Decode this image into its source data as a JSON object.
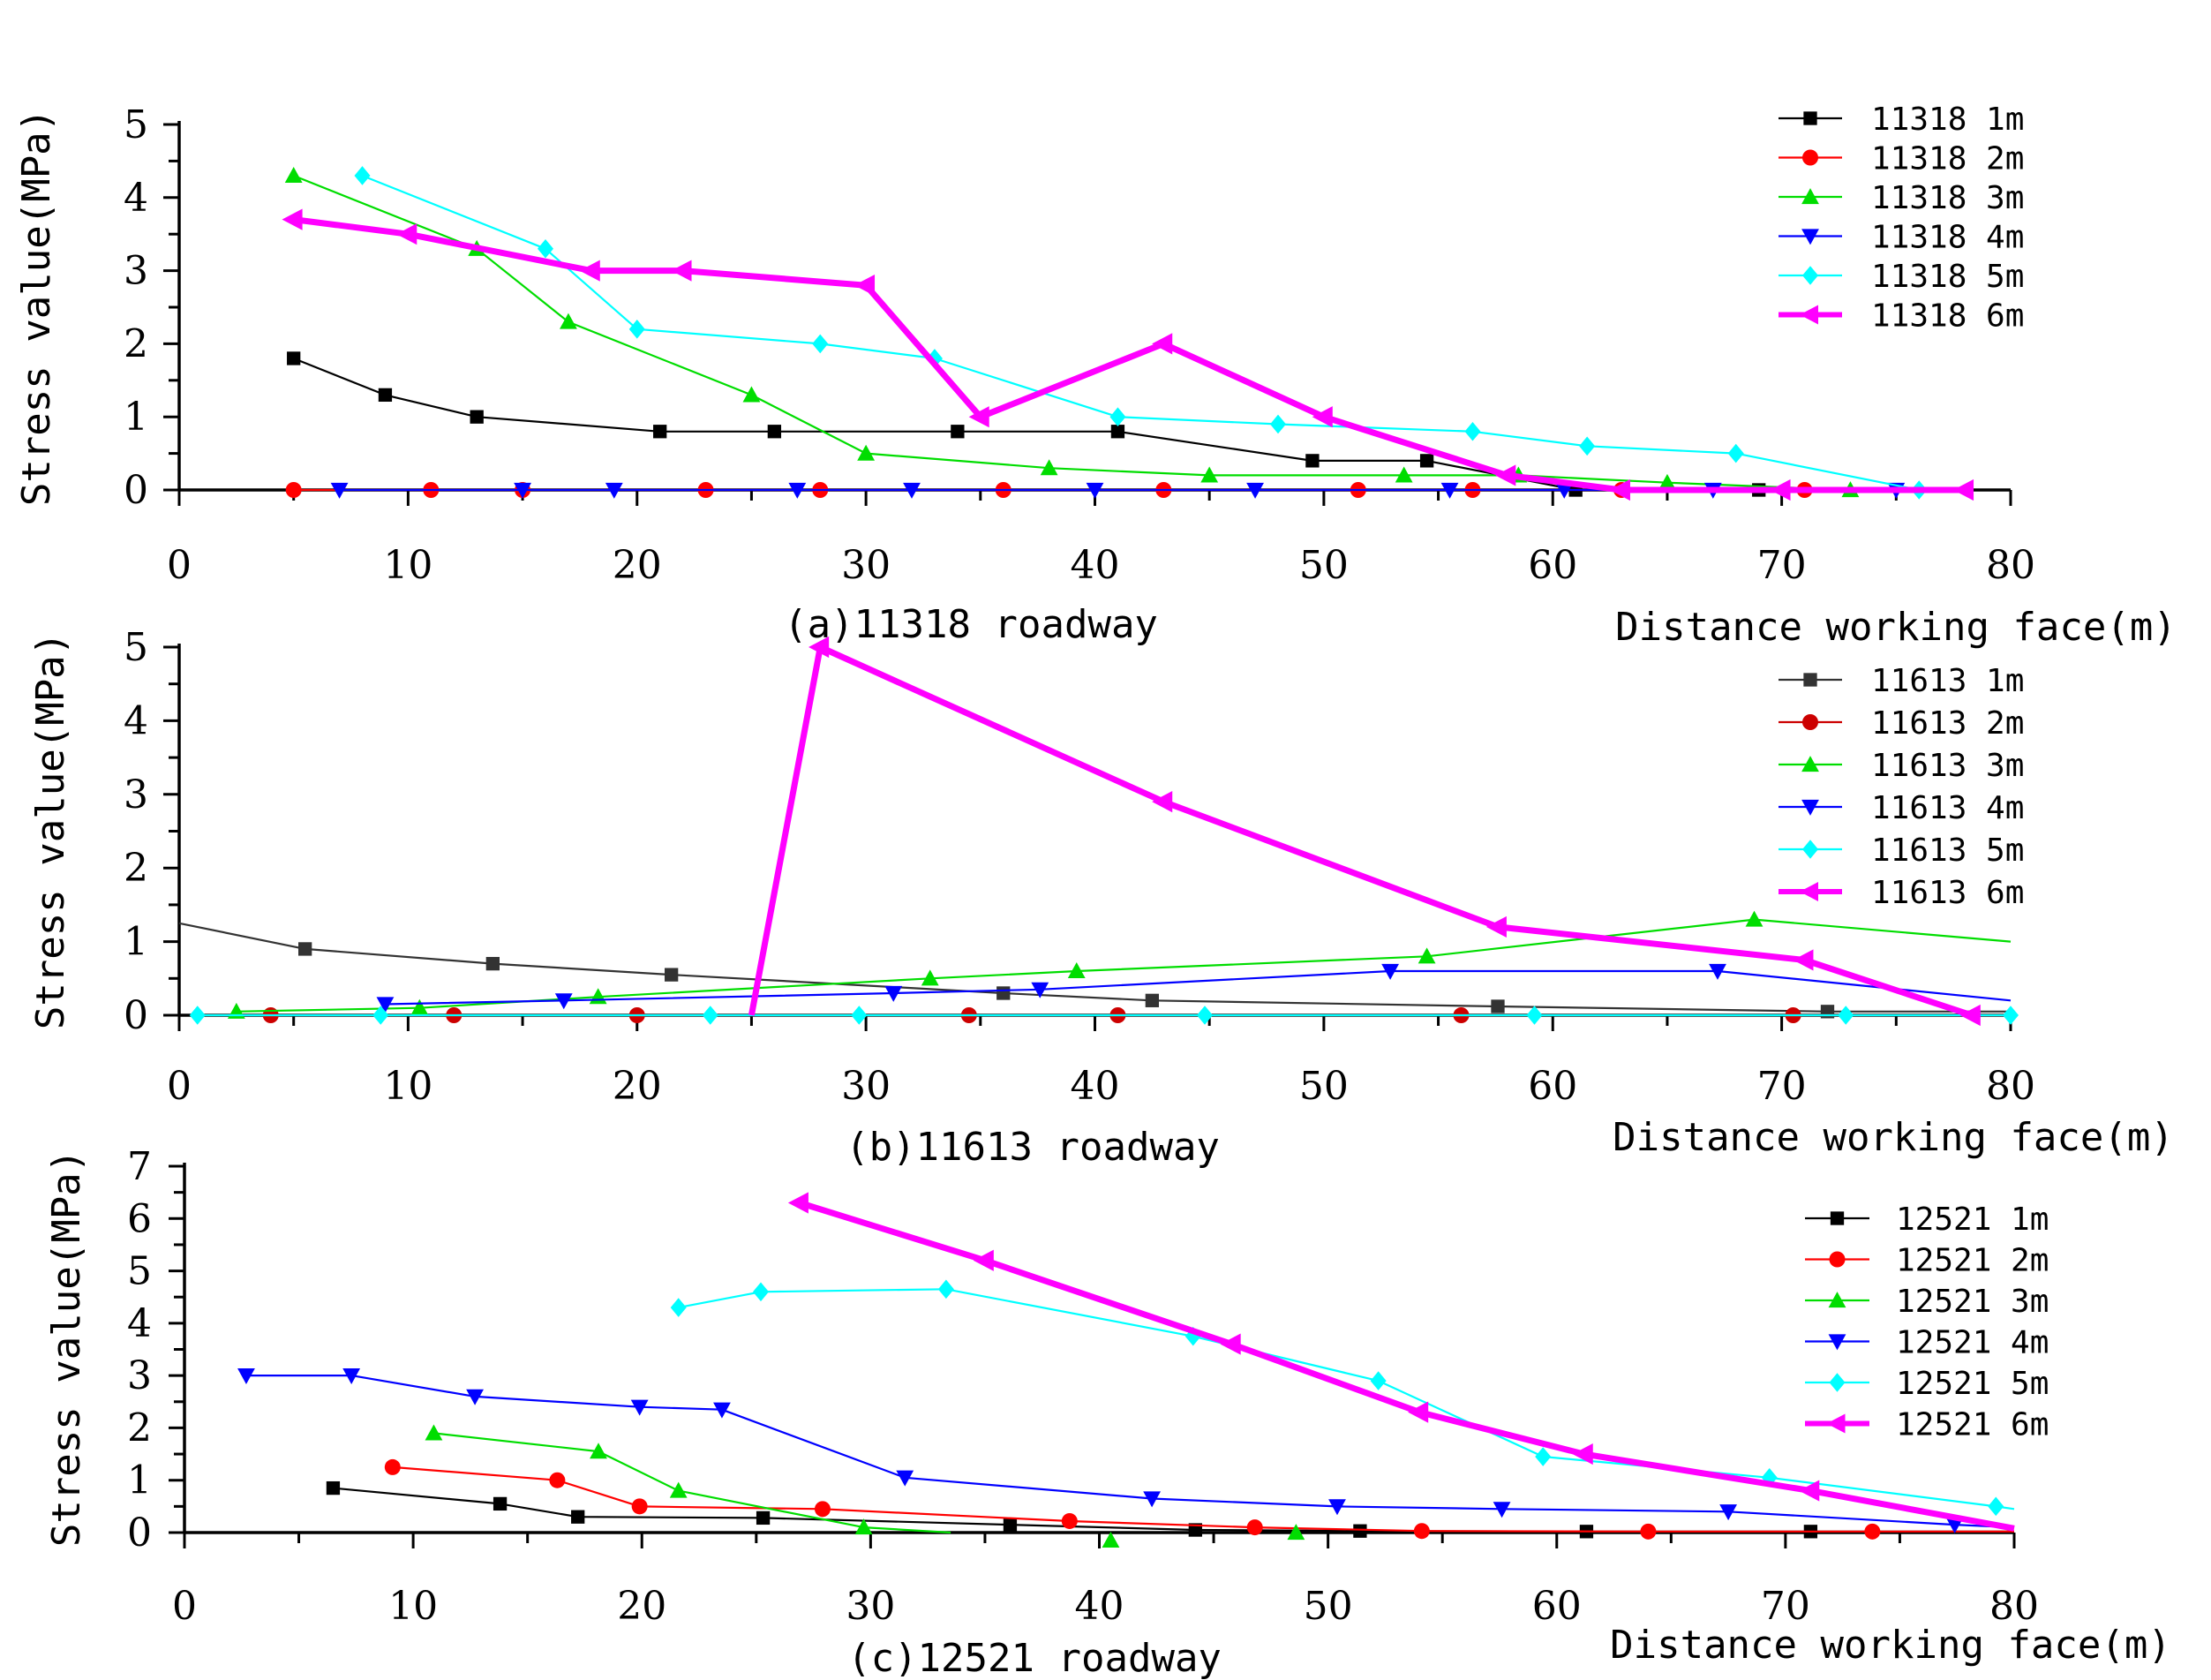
{
  "chart_data": [
    {
      "id": "a",
      "type": "line",
      "caption": "(a)11318 roadway",
      "xlabel": "Distance working face(m)",
      "ylabel": "Stress value(MPa)",
      "xlim": [
        0,
        80
      ],
      "ylim": [
        0,
        5
      ],
      "xticks": [
        0,
        10,
        20,
        30,
        40,
        50,
        60,
        70,
        80
      ],
      "yticks": [
        0,
        1,
        2,
        3,
        4,
        5
      ],
      "grid": false,
      "legend_position": "top-right",
      "series": [
        {
          "name": "11318 1m",
          "color": "#000000",
          "marker": "square",
          "bold": false,
          "x": [
            5,
            9,
            13,
            21,
            26,
            34,
            41,
            49.5,
            54.5,
            61,
            69
          ],
          "y": [
            1.8,
            1.3,
            1.0,
            0.8,
            0.8,
            0.8,
            0.8,
            0.4,
            0.4,
            0.0,
            0.0
          ]
        },
        {
          "name": "11318 2m",
          "color": "#ff0000",
          "marker": "circle",
          "bold": false,
          "x": [
            5,
            11,
            15,
            23,
            28,
            36,
            43,
            51.5,
            56.5,
            63,
            71
          ],
          "y": [
            0,
            0,
            0,
            0,
            0,
            0,
            0,
            0,
            0,
            0,
            0
          ]
        },
        {
          "name": "11318 3m",
          "color": "#00dd00",
          "marker": "triangle-up",
          "bold": false,
          "x": [
            5,
            13,
            17,
            25,
            30,
            38,
            45,
            53.5,
            58.5,
            65,
            73
          ],
          "y": [
            4.3,
            3.3,
            2.3,
            1.3,
            0.5,
            0.3,
            0.2,
            0.2,
            0.2,
            0.1,
            0.0
          ]
        },
        {
          "name": "11318 4m",
          "color": "#0000ff",
          "marker": "triangle-down",
          "bold": false,
          "x": [
            7,
            15,
            19,
            27,
            32,
            40,
            47,
            55.5,
            60.5,
            67,
            75
          ],
          "y": [
            0,
            0,
            0,
            0,
            0,
            0,
            0,
            0,
            0,
            0,
            0
          ]
        },
        {
          "name": "11318 5m",
          "color": "#00ffff",
          "marker": "diamond",
          "bold": false,
          "x": [
            8,
            16,
            20,
            28,
            33,
            41,
            48,
            56.5,
            61.5,
            68,
            76
          ],
          "y": [
            4.3,
            3.3,
            2.2,
            2.0,
            1.8,
            1.0,
            0.9,
            0.8,
            0.6,
            0.5,
            0.0
          ]
        },
        {
          "name": "11318 6m",
          "color": "#ff00ff",
          "marker": "triangle-left",
          "bold": true,
          "x": [
            5,
            10,
            18,
            22,
            30,
            35,
            43,
            50,
            58,
            63,
            70,
            78
          ],
          "y": [
            3.7,
            3.5,
            3.0,
            3.0,
            2.8,
            1.0,
            2.0,
            1.0,
            0.2,
            0.0,
            0.0,
            0.0
          ]
        }
      ]
    },
    {
      "id": "b",
      "type": "line",
      "caption": "(b)11613 roadway",
      "xlabel": "Distance working face(m)",
      "ylabel": "Stress value(MPa)",
      "xlim": [
        0,
        80
      ],
      "ylim": [
        0,
        5
      ],
      "xticks": [
        0,
        10,
        20,
        30,
        40,
        50,
        60,
        70,
        80
      ],
      "yticks": [
        0,
        1,
        2,
        3,
        4,
        5
      ],
      "grid": false,
      "legend_position": "top-right",
      "series": [
        {
          "name": "11613 1m",
          "color": "#333333",
          "marker": "square",
          "bold": false,
          "line_x": [
            0,
            5.5,
            13.7,
            21.5,
            36,
            42.5,
            57.6,
            72,
            80
          ],
          "line_y": [
            1.25,
            0.9,
            0.7,
            0.55,
            0.3,
            0.2,
            0.12,
            0.05,
            0.05
          ],
          "x": [
            5.5,
            13.7,
            21.5,
            36,
            42.5,
            57.6,
            72
          ],
          "y": [
            0.9,
            0.7,
            0.55,
            0.3,
            0.2,
            0.12,
            0.05
          ]
        },
        {
          "name": "11613 2m",
          "color": "#cc0000",
          "marker": "circle",
          "bold": false,
          "line_x": [
            4,
            12,
            20,
            34.5,
            41,
            56,
            70.5,
            80
          ],
          "line_y": [
            0,
            0,
            0,
            0,
            0,
            0,
            0,
            0
          ],
          "x": [
            4,
            12,
            20,
            34.5,
            41,
            56,
            70.5
          ],
          "y": [
            0,
            0,
            0,
            0,
            0,
            0,
            0
          ]
        },
        {
          "name": "11613 3m",
          "color": "#00dd00",
          "marker": "triangle-up",
          "bold": false,
          "line_x": [
            2.5,
            10.5,
            18.3,
            32.8,
            39.2,
            54.5,
            68.8,
            80
          ],
          "line_y": [
            0.05,
            0.1,
            0.25,
            0.5,
            0.6,
            0.8,
            1.3,
            1.0
          ],
          "x": [
            2.5,
            10.5,
            18.3,
            32.8,
            39.2,
            54.5,
            68.8
          ],
          "y": [
            0.05,
            0.1,
            0.25,
            0.5,
            0.6,
            0.8,
            1.3
          ]
        },
        {
          "name": "11613 4m",
          "color": "#0000ff",
          "marker": "triangle-down",
          "bold": false,
          "line_x": [
            9,
            16.8,
            31.2,
            37.6,
            52.9,
            67.2,
            80
          ],
          "line_y": [
            0.15,
            0.2,
            0.3,
            0.35,
            0.6,
            0.6,
            0.2
          ],
          "x": [
            9,
            16.8,
            31.2,
            37.6,
            52.9,
            67.2
          ],
          "y": [
            0.15,
            0.2,
            0.3,
            0.35,
            0.6,
            0.6
          ]
        },
        {
          "name": "11613 5m",
          "color": "#00ffff",
          "marker": "diamond",
          "bold": false,
          "line_x": [
            0.8,
            8.8,
            23.2,
            29.7,
            44.8,
            59.2,
            72.8,
            80
          ],
          "line_y": [
            0,
            0,
            0,
            0,
            0,
            0,
            0,
            0
          ],
          "x": [
            0.8,
            8.8,
            23.2,
            29.7,
            44.8,
            59.2,
            72.8,
            80
          ],
          "y": [
            0,
            0,
            0,
            0,
            0,
            0,
            0,
            0
          ]
        },
        {
          "name": "11613 6m",
          "color": "#ff00ff",
          "marker": "triangle-left",
          "bold": true,
          "line_x": [
            25,
            28,
            43,
            57.6,
            71,
            78.3
          ],
          "line_y": [
            0,
            5.0,
            2.9,
            1.2,
            0.75,
            0.0
          ],
          "x": [
            28,
            43,
            57.6,
            71,
            78.3
          ],
          "y": [
            5.0,
            2.9,
            1.2,
            0.75,
            0.0
          ]
        }
      ]
    },
    {
      "id": "c",
      "type": "line",
      "caption": "(c)12521 roadway",
      "xlabel": "Distance working face(m)",
      "ylabel": "Stress value(MPa)",
      "xlim": [
        0,
        80
      ],
      "ylim": [
        0,
        7
      ],
      "xticks": [
        0,
        10,
        20,
        30,
        40,
        50,
        60,
        70,
        80
      ],
      "yticks": [
        0,
        1,
        2,
        3,
        4,
        5,
        6,
        7
      ],
      "grid": false,
      "legend_position": "top-right",
      "series": [
        {
          "name": "12521 1m",
          "color": "#000000",
          "marker": "square",
          "bold": false,
          "line_x": [
            6.5,
            13.8,
            17.2,
            25.3,
            36.1,
            44.2,
            51.4,
            61.3,
            71.1,
            80
          ],
          "line_y": [
            0.85,
            0.55,
            0.3,
            0.28,
            0.15,
            0.05,
            0.03,
            0.02,
            0.02,
            0.02
          ],
          "x": [
            6.5,
            13.8,
            17.2,
            25.3,
            36.1,
            44.2,
            51.4,
            61.3,
            71.1
          ],
          "y": [
            0.85,
            0.55,
            0.3,
            0.28,
            0.15,
            0.05,
            0.03,
            0.02,
            0.02
          ]
        },
        {
          "name": "12521 2m",
          "color": "#ff0000",
          "marker": "circle",
          "bold": false,
          "line_x": [
            9.1,
            16.3,
            19.9,
            27.9,
            38.7,
            46.8,
            54.1,
            64,
            73.8,
            80
          ],
          "line_y": [
            1.25,
            1.0,
            0.5,
            0.45,
            0.22,
            0.1,
            0.03,
            0.02,
            0.02,
            0.02
          ],
          "x": [
            9.1,
            16.3,
            19.9,
            27.9,
            38.7,
            46.8,
            54.1,
            64,
            73.8
          ],
          "y": [
            1.25,
            1.0,
            0.5,
            0.45,
            0.22,
            0.1,
            0.03,
            0.02,
            0.02
          ]
        },
        {
          "name": "12521 3m",
          "color": "#00dd00",
          "marker": "triangle-up",
          "bold": false,
          "line_x": [
            10.9,
            18.1,
            21.6,
            29.7,
            33.5
          ],
          "line_y": [
            1.9,
            1.55,
            0.8,
            0.1,
            0.0
          ],
          "x": [
            10.9,
            18.1,
            21.6,
            29.7,
            40.5,
            48.6
          ],
          "y": [
            1.9,
            1.55,
            0.8,
            0.1,
            -0.15,
            0.0
          ]
        },
        {
          "name": "12521 4m",
          "color": "#0000ff",
          "marker": "triangle-down",
          "bold": false,
          "line_x": [
            2.7,
            7.3,
            12.7,
            19.9,
            23.5,
            31.5,
            42.3,
            50.4,
            57.6,
            67.5,
            77.4,
            80
          ],
          "line_y": [
            3.0,
            3.0,
            2.6,
            2.4,
            2.35,
            1.05,
            0.65,
            0.5,
            0.45,
            0.4,
            0.15,
            0.1
          ],
          "x": [
            2.7,
            7.3,
            12.7,
            19.9,
            23.5,
            31.5,
            42.3,
            50.4,
            57.6,
            67.5,
            77.4
          ],
          "y": [
            3.0,
            3.0,
            2.6,
            2.4,
            2.35,
            1.05,
            0.65,
            0.5,
            0.45,
            0.4,
            0.15
          ]
        },
        {
          "name": "12521 5m",
          "color": "#00ffff",
          "marker": "diamond",
          "bold": false,
          "line_x": [
            21.6,
            25.2,
            33.3,
            44.1,
            52.2,
            59.4,
            69.3,
            79.2,
            80
          ],
          "line_y": [
            4.3,
            4.6,
            4.65,
            3.75,
            2.9,
            1.45,
            1.05,
            0.5,
            0.45
          ],
          "x": [
            21.6,
            25.2,
            33.3,
            44.1,
            52.2,
            59.4,
            69.3,
            79.2
          ],
          "y": [
            4.3,
            4.6,
            4.65,
            3.75,
            2.9,
            1.45,
            1.05,
            0.5
          ]
        },
        {
          "name": "12521 6m",
          "color": "#ff00ff",
          "marker": "triangle-left",
          "bold": true,
          "line_x": [
            26.9,
            35.0,
            45.8,
            54.0,
            61.2,
            71.1,
            80
          ],
          "line_y": [
            6.3,
            5.2,
            3.6,
            2.3,
            1.5,
            0.8,
            0.08
          ],
          "x": [
            26.9,
            35.0,
            45.8,
            54.0,
            61.2,
            71.1
          ],
          "y": [
            6.3,
            5.2,
            3.6,
            2.3,
            1.5,
            0.8
          ]
        }
      ]
    }
  ]
}
